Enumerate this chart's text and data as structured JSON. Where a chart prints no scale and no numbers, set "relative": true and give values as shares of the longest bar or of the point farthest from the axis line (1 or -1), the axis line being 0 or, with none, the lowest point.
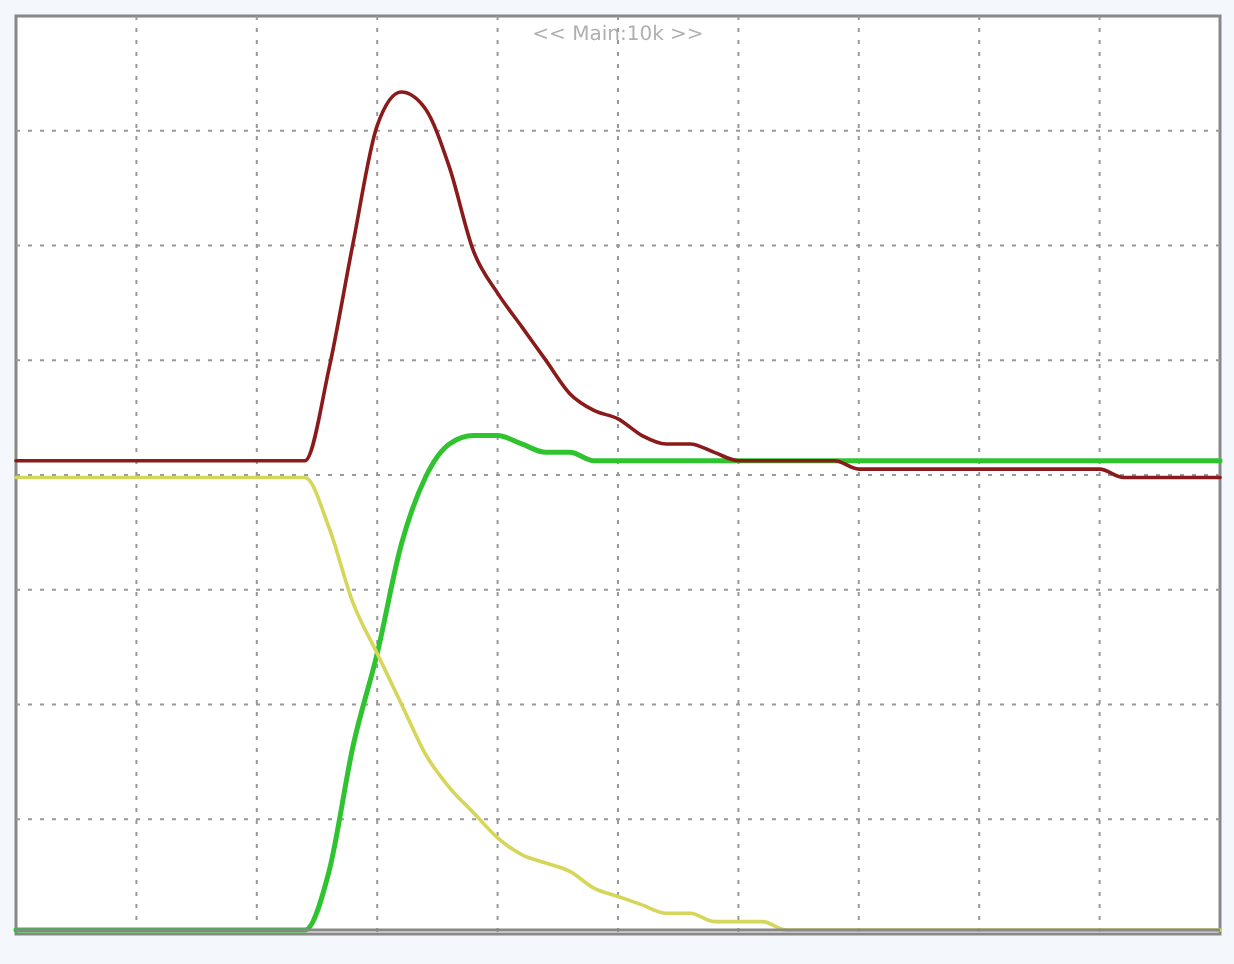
{
  "chart_data": {
    "type": "line",
    "relative": true,
    "grid": true,
    "annotations": [
      "<< Main:10k >>"
    ],
    "categories": [
      null,
      null,
      null,
      null,
      null,
      null,
      null,
      null,
      null,
      null,
      null,
      null,
      null,
      null,
      null,
      null,
      null,
      null,
      null,
      null,
      null,
      null,
      null,
      null,
      null,
      null,
      null,
      null,
      null,
      null,
      null,
      null,
      null,
      null,
      null,
      null,
      null,
      null,
      null,
      null,
      null,
      null,
      null,
      null,
      null,
      null,
      null,
      null,
      null,
      null,
      null
    ],
    "series": [
      {
        "color": "#8b1a1a",
        "values": [
          0.56,
          0.56,
          0.56,
          0.56,
          0.56,
          0.56,
          0.56,
          0.56,
          0.56,
          0.56,
          0.56,
          0.56,
          0.56,
          0.67,
          0.82,
          0.96,
          1,
          0.98,
          0.91,
          0.81,
          0.76,
          0.72,
          0.68,
          0.64,
          0.62,
          0.61,
          0.59,
          0.58,
          0.58,
          0.57,
          0.56,
          0.56,
          0.56,
          0.56,
          0.56,
          0.55,
          0.55,
          0.55,
          0.55,
          0.55,
          0.55,
          0.55,
          0.55,
          0.55,
          0.55,
          0.55,
          0.54,
          0.54,
          0.54,
          0.54,
          0.54
        ]
      },
      {
        "color": "#d6d65a",
        "values": [
          0.54,
          0.54,
          0.54,
          0.54,
          0.54,
          0.54,
          0.54,
          0.54,
          0.54,
          0.54,
          0.54,
          0.54,
          0.54,
          0.48,
          0.39,
          0.33,
          0.27,
          0.21,
          0.17,
          0.14,
          0.11,
          0.09,
          0.08,
          0.07,
          0.05,
          0.04,
          0.03,
          0.02,
          0.02,
          0.01,
          0.01,
          0.01,
          0,
          0,
          0,
          0,
          0,
          0,
          0,
          0,
          0,
          0,
          0,
          0,
          0,
          0,
          0,
          0,
          0,
          0,
          0
        ]
      },
      {
        "color": "#2fc42f",
        "values": [
          0,
          0,
          0,
          0,
          0,
          0,
          0,
          0,
          0,
          0,
          0,
          0,
          0,
          0.07,
          0.22,
          0.33,
          0.46,
          0.54,
          0.58,
          0.59,
          0.59,
          0.58,
          0.57,
          0.57,
          0.56,
          0.56,
          0.56,
          0.56,
          0.56,
          0.56,
          0.56,
          0.56,
          0.56,
          0.56,
          0.56,
          0.56,
          0.56,
          0.56,
          0.56,
          0.56,
          0.56,
          0.56,
          0.56,
          0.56,
          0.56,
          0.56,
          0.56,
          0.56,
          0.56,
          0.56,
          0.56
        ]
      }
    ]
  }
}
